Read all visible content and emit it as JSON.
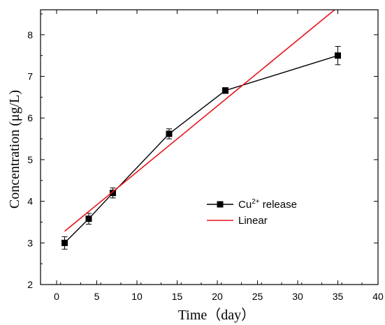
{
  "chart_data": {
    "type": "line",
    "xlabel": "Time（day）",
    "ylabel": "Concentration (μg/L)",
    "xlim": [
      -2,
      40
    ],
    "ylim": [
      2,
      8.6
    ],
    "xticks": [
      0,
      5,
      10,
      15,
      20,
      25,
      30,
      35,
      40
    ],
    "yticks": [
      2,
      3,
      4,
      5,
      6,
      7,
      8
    ],
    "legend_position": "center-right",
    "series": [
      {
        "name": "Cu2+ release",
        "legend_base": "Cu",
        "legend_sup": "2+",
        "legend_rest": " release",
        "color": "#000000",
        "marker": "square",
        "x": [
          1,
          4,
          7,
          14,
          21,
          35
        ],
        "y": [
          3.0,
          3.58,
          4.2,
          5.62,
          6.66,
          7.5
        ],
        "error": [
          0.15,
          0.13,
          0.12,
          0.12,
          0.07,
          0.22
        ]
      },
      {
        "name": "Linear",
        "color": "#e8121a",
        "type": "fit-line",
        "x": [
          1,
          34.6
        ],
        "y": [
          3.28,
          8.6
        ]
      }
    ]
  }
}
